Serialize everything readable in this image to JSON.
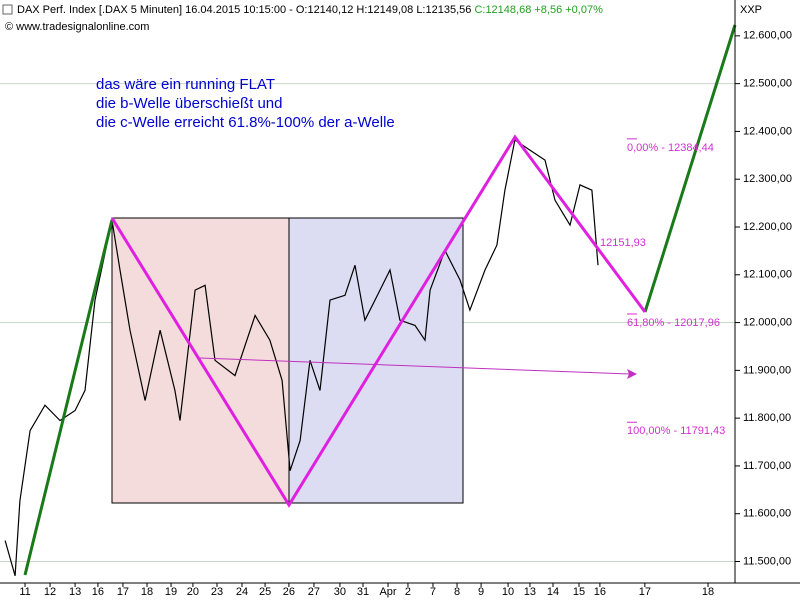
{
  "chart_data": {
    "type": "line",
    "title": "DAX Perf. Index [.DAX  5 Minuten] 16.04.2015 10:15:00 - O:12140,12 H:12149,08 L:12135,56",
    "title_change": "C:12148,68 +8,56 +0,07%",
    "source": "© www.tradesignalonline.com",
    "annotation": [
      "das wäre ein running FLAT",
      "die b-Welle überschießt und",
      "die c-Welle erreicht 61.8%-100% der a-Welle"
    ],
    "y_axis_label": "XXP",
    "color": "#000000",
    "xlim": [
      -1.03,
      29.22
    ],
    "xticks": [
      {
        "value": 0,
        "label": "11"
      },
      {
        "value": 1.03,
        "label": "12"
      },
      {
        "value": 2.06,
        "label": "13"
      },
      {
        "value": 3.0,
        "label": "16"
      },
      {
        "value": 4.03,
        "label": "17"
      },
      {
        "value": 5.02,
        "label": "18"
      },
      {
        "value": 6.01,
        "label": "19"
      },
      {
        "value": 6.91,
        "label": "20"
      },
      {
        "value": 7.9,
        "label": "23"
      },
      {
        "value": 8.93,
        "label": "24"
      },
      {
        "value": 9.88,
        "label": "25"
      },
      {
        "value": 10.86,
        "label": "26"
      },
      {
        "value": 11.89,
        "label": "27"
      },
      {
        "value": 12.96,
        "label": "30"
      },
      {
        "value": 13.91,
        "label": "31"
      },
      {
        "value": 14.94,
        "label": "Apr"
      },
      {
        "value": 15.76,
        "label": "2"
      },
      {
        "value": 16.79,
        "label": "7"
      },
      {
        "value": 17.78,
        "label": "8"
      },
      {
        "value": 18.77,
        "label": "9"
      },
      {
        "value": 19.88,
        "label": "10"
      },
      {
        "value": 20.78,
        "label": "13"
      },
      {
        "value": 21.73,
        "label": "14"
      },
      {
        "value": 22.8,
        "label": "15"
      },
      {
        "value": 23.66,
        "label": "16"
      },
      {
        "value": 25.51,
        "label": "17"
      },
      {
        "value": 28.11,
        "label": "18"
      }
    ],
    "ylim": [
      11455,
      12675
    ],
    "yticks": [
      {
        "value": 11500,
        "label": "11.500,00"
      },
      {
        "value": 11600,
        "label": "11.600,00"
      },
      {
        "value": 11700,
        "label": "11.700,00"
      },
      {
        "value": 11800,
        "label": "11.800,00"
      },
      {
        "value": 11900,
        "label": "11.900,00"
      },
      {
        "value": 12000,
        "label": "12.000,00"
      },
      {
        "value": 12100,
        "label": "12.100,00"
      },
      {
        "value": 12200,
        "label": "12.200,00"
      },
      {
        "value": 12300,
        "label": "12.300,00"
      },
      {
        "value": 12400,
        "label": "12.400,00"
      },
      {
        "value": 12500,
        "label": "12.500,00"
      },
      {
        "value": 12600,
        "label": "12.600,00"
      }
    ],
    "grid_levels": [
      11500,
      12000,
      12500
    ],
    "x": [
      -0.82,
      -0.41,
      -0.21,
      0.21,
      0.82,
      1.44,
      2.06,
      2.47,
      2.88,
      3.58,
      3.91,
      4.32,
      4.94,
      5.56,
      6.17,
      6.38,
      7.0,
      7.41,
      7.82,
      8.64,
      9.47,
      10.08,
      10.58,
      10.91,
      11.32,
      11.73,
      12.14,
      12.55,
      13.17,
      13.58,
      13.99,
      14.61,
      15.02,
      15.43,
      16.05,
      16.46,
      16.67,
      17.28,
      17.9,
      18.31,
      18.93,
      19.42,
      19.75,
      20.16,
      20.78,
      21.4,
      21.81,
      22.43,
      22.84,
      23.33,
      23.58
    ],
    "values": [
      11544,
      11470,
      11627,
      11774,
      11827,
      11795,
      11816,
      11858,
      12047,
      12214,
      12110,
      11984,
      11837,
      11984,
      11858,
      11795,
      12068,
      12078,
      11921,
      11889,
      12015,
      11963,
      11879,
      11690,
      11753,
      11921,
      11858,
      12047,
      12057,
      12120,
      12005,
      12068,
      12110,
      12005,
      11994,
      11963,
      12068,
      12151,
      12089,
      12026,
      12110,
      12162,
      12277,
      12382,
      12361,
      12340,
      12256,
      12204,
      12288,
      12277,
      12120
    ],
    "fib_levels": [
      {
        "value": 12384.44,
        "label": "0,00% - 12384,44"
      },
      {
        "value": 12017.96,
        "label": "61,80% - 12017,96"
      },
      {
        "value": 11791.43,
        "label": "100,00% - 11791,43"
      }
    ],
    "last_value": {
      "value": 12151.93,
      "label": "12151,93"
    }
  }
}
